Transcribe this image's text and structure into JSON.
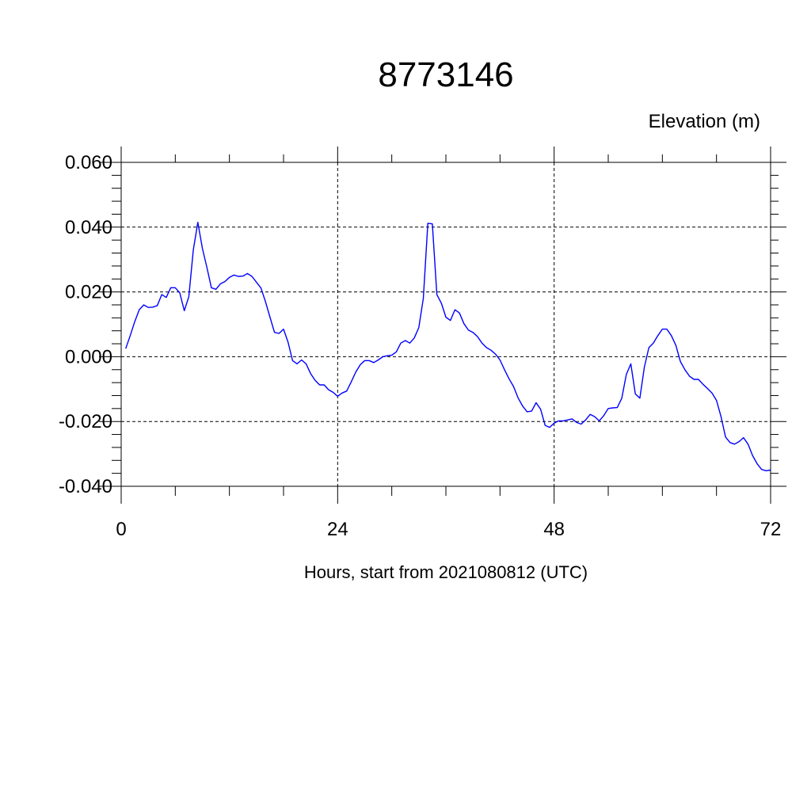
{
  "chart_data": {
    "type": "line",
    "title": "8773146",
    "ylabel": "Elevation (m)",
    "xlabel": "Hours, start from 2021080812 (UTC)",
    "xlim": [
      0,
      72
    ],
    "ylim": [
      -0.04,
      0.06
    ],
    "x_ticks": [
      0,
      24,
      48,
      72
    ],
    "x_tick_labels": [
      "0",
      "24",
      "48",
      "72"
    ],
    "y_ticks": [
      -0.04,
      -0.02,
      0.0,
      0.02,
      0.04,
      0.06
    ],
    "y_tick_labels": [
      "-0.040",
      "-0.020",
      "0.000",
      "0.020",
      "0.040",
      "0.060"
    ],
    "grid": true,
    "series": [
      {
        "color": "#0000ff",
        "x": [
          0.5,
          1.0,
          1.5,
          2.0,
          2.5,
          3.0,
          3.5,
          4.0,
          4.5,
          5.0,
          5.5,
          6.0,
          6.5,
          7.0,
          7.5,
          8.0,
          8.5,
          9.0,
          9.5,
          10.0,
          10.5,
          11.0,
          11.5,
          12.0,
          12.5,
          13.0,
          13.5,
          14.0,
          14.5,
          15.0,
          15.5,
          16.0,
          16.5,
          17.0,
          17.5,
          18.0,
          18.5,
          19.0,
          19.5,
          20.0,
          20.5,
          21.0,
          21.5,
          22.0,
          22.5,
          23.0,
          23.5,
          24.0,
          24.5,
          25.0,
          25.5,
          26.0,
          26.5,
          27.0,
          27.5,
          28.0,
          28.5,
          29.0,
          29.5,
          30.0,
          30.5,
          31.0,
          31.5,
          32.0,
          32.5,
          33.0,
          33.5,
          34.0,
          34.5,
          35.0,
          35.5,
          36.0,
          36.5,
          37.0,
          37.5,
          38.0,
          38.5,
          39.0,
          39.5,
          40.0,
          40.5,
          41.0,
          41.5,
          42.0,
          42.5,
          43.0,
          43.5,
          44.0,
          44.5,
          45.0,
          45.5,
          46.0,
          46.5,
          47.0,
          47.5,
          48.0,
          48.5,
          49.0,
          49.5,
          50.0,
          50.5,
          51.0,
          51.5,
          52.0,
          52.5,
          53.0,
          53.5,
          54.0,
          54.5,
          55.0,
          55.5,
          56.0,
          56.5,
          57.0,
          57.5,
          58.0,
          58.5,
          59.0,
          59.5,
          60.0,
          60.5,
          61.0,
          61.5,
          62.0,
          62.5,
          63.0,
          63.5,
          64.0,
          64.5,
          65.0,
          65.5,
          66.0,
          66.5,
          67.0,
          67.5,
          68.0,
          68.5,
          69.0,
          69.5,
          70.0,
          70.5,
          71.0,
          71.5,
          72.0
        ],
        "y": [
          0.0025,
          0.0065,
          0.0108,
          0.0145,
          0.016,
          0.0152,
          0.0153,
          0.0158,
          0.0192,
          0.0183,
          0.0213,
          0.0213,
          0.0197,
          0.0142,
          0.0185,
          0.033,
          0.0415,
          0.0335,
          0.0276,
          0.0213,
          0.0208,
          0.0225,
          0.0232,
          0.0245,
          0.0252,
          0.0248,
          0.0249,
          0.0257,
          0.0248,
          0.023,
          0.0212,
          0.017,
          0.0122,
          0.0075,
          0.0072,
          0.0085,
          0.0045,
          -0.0012,
          -0.0022,
          -0.001,
          -0.0022,
          -0.0052,
          -0.0073,
          -0.0087,
          -0.0087,
          -0.0102,
          -0.011,
          -0.0122,
          -0.0112,
          -0.0106,
          -0.0078,
          -0.0048,
          -0.0025,
          -0.0012,
          -0.0012,
          -0.0018,
          -0.001,
          0.0,
          0.0003,
          0.0005,
          0.0015,
          0.0042,
          0.005,
          0.0042,
          0.0058,
          0.009,
          0.018,
          0.0412,
          0.041,
          0.0192,
          0.0165,
          0.0122,
          0.0112,
          0.0145,
          0.0135,
          0.0102,
          0.0082,
          0.0075,
          0.0062,
          0.0042,
          0.0028,
          0.002,
          0.0008,
          -0.001,
          -0.004,
          -0.0068,
          -0.0092,
          -0.0127,
          -0.0152,
          -0.017,
          -0.0168,
          -0.0142,
          -0.0162,
          -0.0212,
          -0.0218,
          -0.0205,
          -0.0198,
          -0.0198,
          -0.0195,
          -0.0192,
          -0.0203,
          -0.0208,
          -0.0195,
          -0.0178,
          -0.0185,
          -0.0198,
          -0.0182,
          -0.016,
          -0.0158,
          -0.0157,
          -0.0128,
          -0.0055,
          -0.0022,
          -0.0115,
          -0.0128,
          -0.0032,
          0.0028,
          0.0042,
          0.0065,
          0.0085,
          0.0085,
          0.0065,
          0.0035,
          -0.0015,
          -0.004,
          -0.006,
          -0.007,
          -0.007,
          -0.0085,
          -0.0098,
          -0.0112,
          -0.0135,
          -0.0185,
          -0.0248,
          -0.0265,
          -0.027,
          -0.0262,
          -0.025,
          -0.027,
          -0.0305,
          -0.033,
          -0.0348,
          -0.0352,
          -0.035
        ]
      }
    ]
  }
}
